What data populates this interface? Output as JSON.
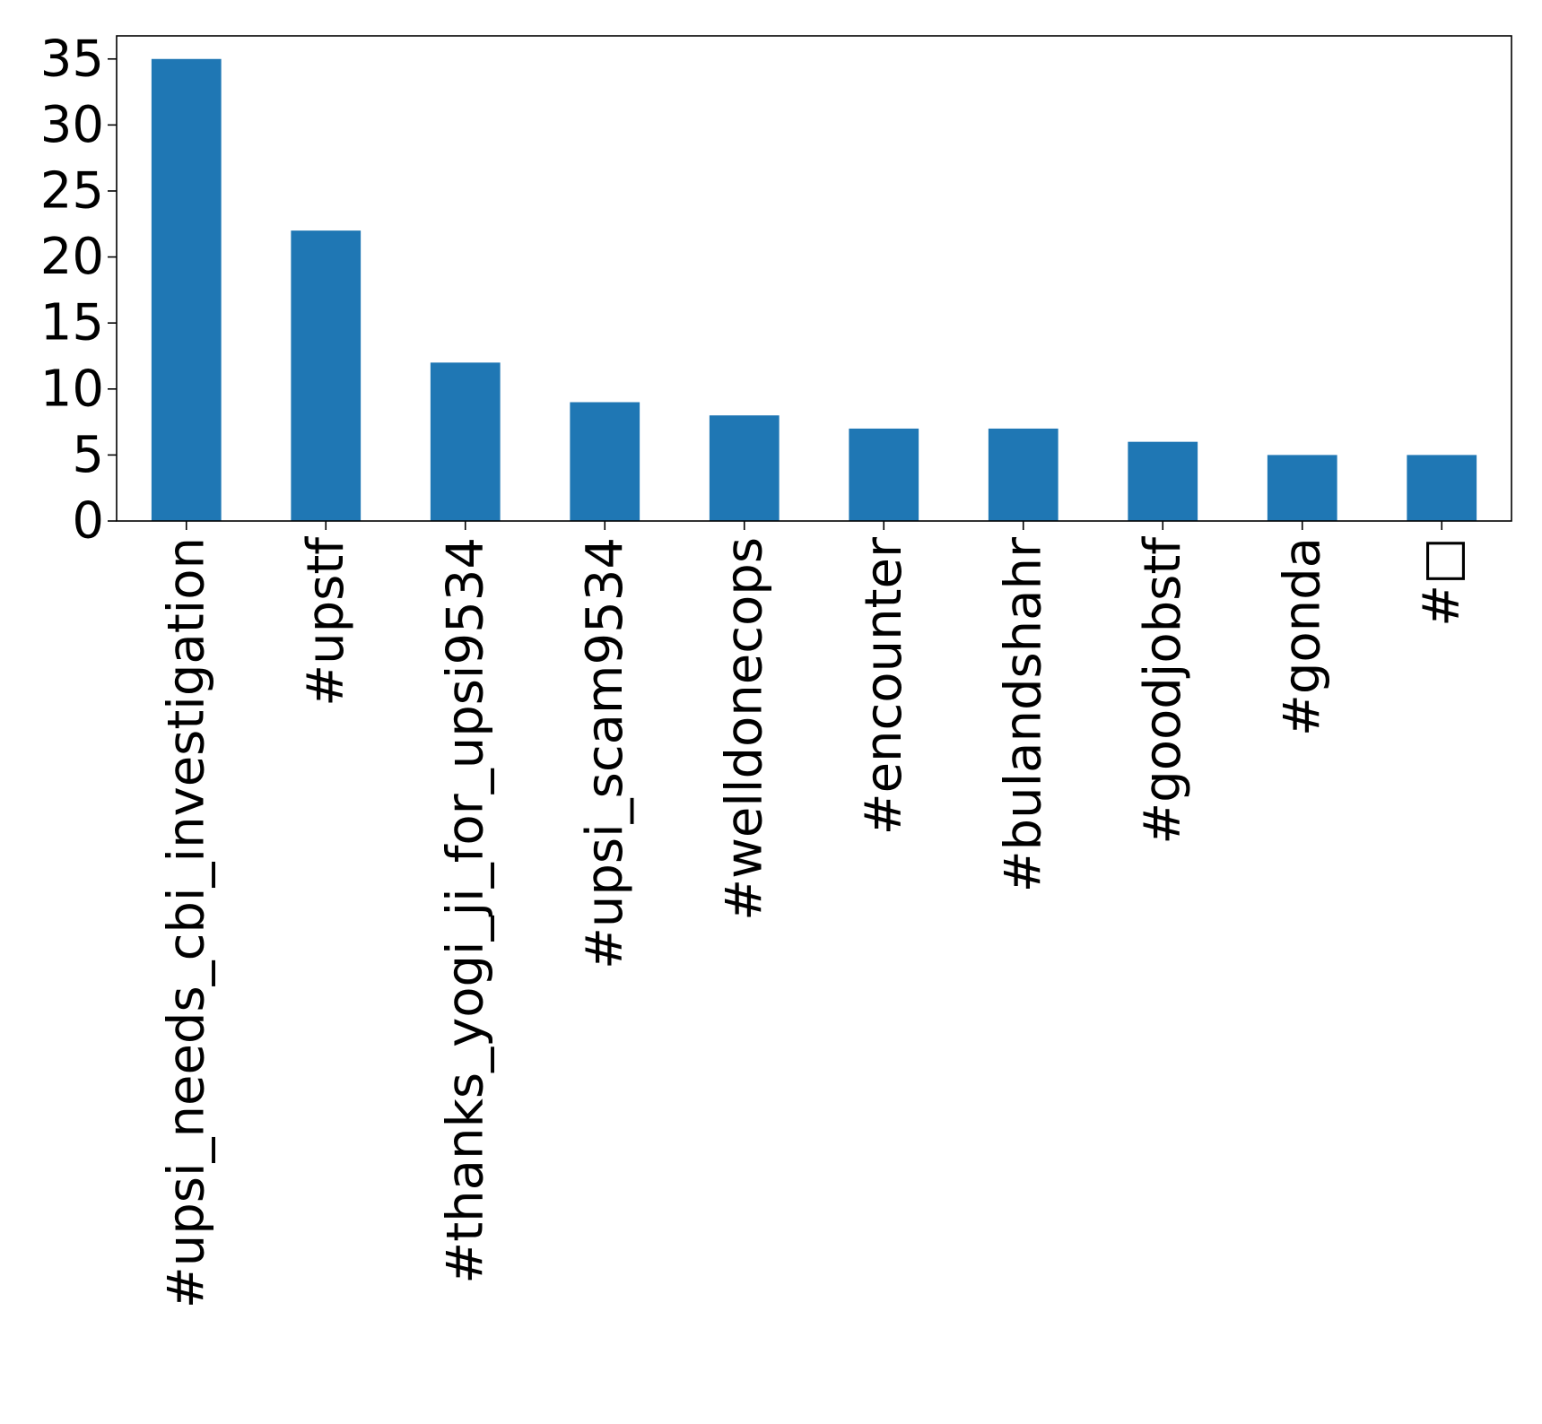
{
  "chart_data": {
    "type": "bar",
    "categories": [
      "#upsi_needs_cbi_investigation",
      "#upstf",
      "#thanks_yogi_ji_for_upsi9534",
      "#upsi_scam9534",
      "#welldonecops",
      "#encounter",
      "#bulandshahr",
      "#goodjobstf",
      "#gonda",
      "#□"
    ],
    "values": [
      35,
      22,
      12,
      9,
      8,
      7,
      7,
      6,
      5,
      5
    ],
    "yticks": [
      0,
      5,
      10,
      15,
      20,
      25,
      30,
      35
    ],
    "ylim": [
      0,
      36.75
    ],
    "bar_color": "#1f77b4",
    "grid": false,
    "legend": "none"
  }
}
